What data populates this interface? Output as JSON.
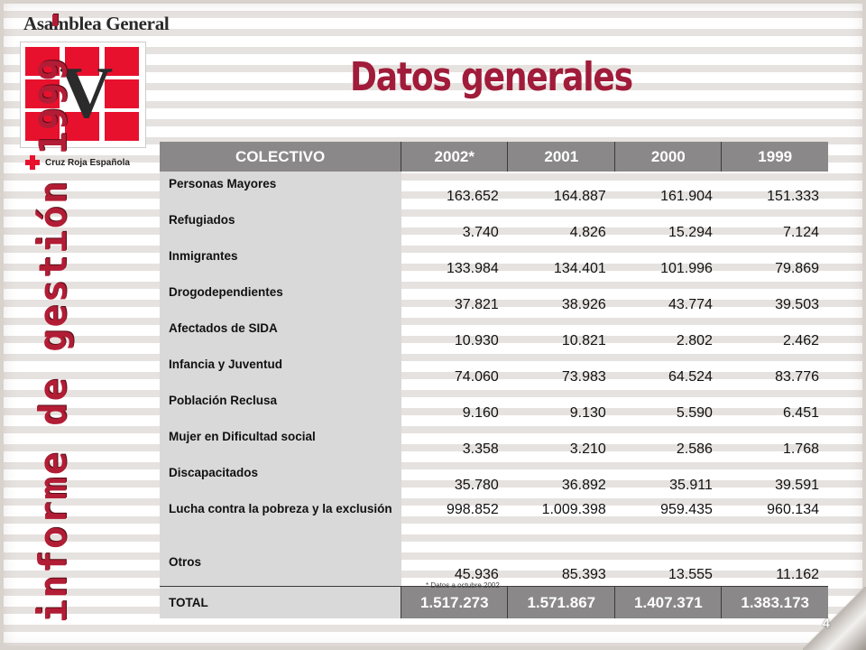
{
  "logo": {
    "title": "Asamblea General",
    "roman": "V",
    "org": "Cruz Roja Española"
  },
  "side_text": "informe de gestión 1999 - 2002",
  "title": "Datos generales",
  "table": {
    "headers": [
      "COLECTIVO",
      "2002*",
      "2001",
      "2000",
      "1999"
    ],
    "rows": [
      {
        "name": "Personas Mayores",
        "values": [
          "163.652",
          "164.887",
          "161.904",
          "151.333"
        ]
      },
      {
        "name": "Refugiados",
        "values": [
          "3.740",
          "4.826",
          "15.294",
          "7.124"
        ]
      },
      {
        "name": "Inmigrantes",
        "values": [
          "133.984",
          "134.401",
          "101.996",
          "79.869"
        ]
      },
      {
        "name": "Drogodependientes",
        "values": [
          "37.821",
          "38.926",
          "43.774",
          "39.503"
        ]
      },
      {
        "name": "Afectados de SIDA",
        "values": [
          "10.930",
          "10.821",
          "2.802",
          "2.462"
        ]
      },
      {
        "name": "Infancia y Juventud",
        "values": [
          "74.060",
          "73.983",
          "64.524",
          "83.776"
        ]
      },
      {
        "name": "Población Reclusa",
        "values": [
          "9.160",
          "9.130",
          "5.590",
          "6.451"
        ]
      },
      {
        "name": "Mujer en Dificultad social",
        "values": [
          "3.358",
          "3.210",
          "2.586",
          "1.768"
        ]
      },
      {
        "name": "Discapacitados",
        "values": [
          "35.780",
          "36.892",
          "35.911",
          "39.591"
        ]
      },
      {
        "name": "Lucha contra la pobreza y la exclusión",
        "values": [
          "998.852",
          "1.009.398",
          "959.435",
          "960.134"
        ]
      },
      {
        "name": "Otros",
        "values": [
          "45.936",
          "85.393",
          "13.555",
          "11.162"
        ]
      }
    ],
    "total": {
      "name": "TOTAL",
      "values": [
        "1.517.273",
        "1.571.867",
        "1.407.371",
        "1.383.173"
      ]
    }
  },
  "note": "* Datos a octubre 2002",
  "page_number": "4",
  "colors": {
    "title": "#a01c3a",
    "side_text": "#b21d35",
    "cross": "#e8112d",
    "header_bg": "#8a8888"
  }
}
